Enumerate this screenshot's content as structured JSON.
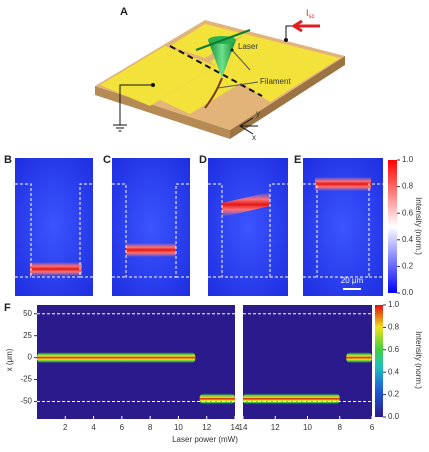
{
  "panel_a": {
    "label": "A",
    "current": "I",
    "current_sub": "sc",
    "laser": "Laser",
    "filament": "Filament",
    "axis_y": "y",
    "axis_x": "x"
  },
  "panels_b_e": {
    "labels": [
      "B",
      "C",
      "D",
      "E"
    ],
    "scale_bar": "20 μm",
    "colorbar": {
      "title": "Intensity (norm.)",
      "ticks": [
        {
          "value": 0,
          "label": "0.0"
        },
        {
          "value": 0.2,
          "label": "0.2"
        },
        {
          "value": 0.4,
          "label": "0.4"
        },
        {
          "value": 0.6,
          "label": "0.6"
        },
        {
          "value": 0.8,
          "label": "0.8"
        },
        {
          "value": 1,
          "label": "1.0"
        }
      ]
    }
  },
  "chart_data": {
    "type": "heatmap",
    "label": "F",
    "ylabel": "x (μm)",
    "xlabel": "Laser power (mW)",
    "ylim": [
      -70,
      60
    ],
    "yticks": [
      50,
      25,
      0,
      -25,
      -50
    ],
    "guides": [
      50,
      -50
    ],
    "plots": [
      {
        "xlim": [
          0,
          14
        ],
        "xticks": [
          2,
          4,
          6,
          8,
          10,
          12,
          14
        ],
        "segments": [
          {
            "from": 0,
            "to": 11.2,
            "position": 0
          },
          {
            "from": 11.5,
            "to": 14,
            "position": -47
          }
        ]
      },
      {
        "xlim": [
          14,
          6
        ],
        "xticks": [
          14,
          12,
          10,
          8,
          6
        ],
        "segments": [
          {
            "from": 14,
            "to": 8,
            "position": -47
          },
          {
            "from": 7.6,
            "to": 6,
            "position": 0
          }
        ]
      }
    ],
    "colorbar": {
      "title": "Intensity (norm.)",
      "ticks": [
        {
          "value": 0,
          "label": "0.0"
        },
        {
          "value": 0.2,
          "label": "0.2"
        },
        {
          "value": 0.4,
          "label": "0.4"
        },
        {
          "value": 0.6,
          "label": "0.6"
        },
        {
          "value": 0.8,
          "label": "0.8"
        },
        {
          "value": 1,
          "label": "1.0"
        }
      ]
    }
  }
}
